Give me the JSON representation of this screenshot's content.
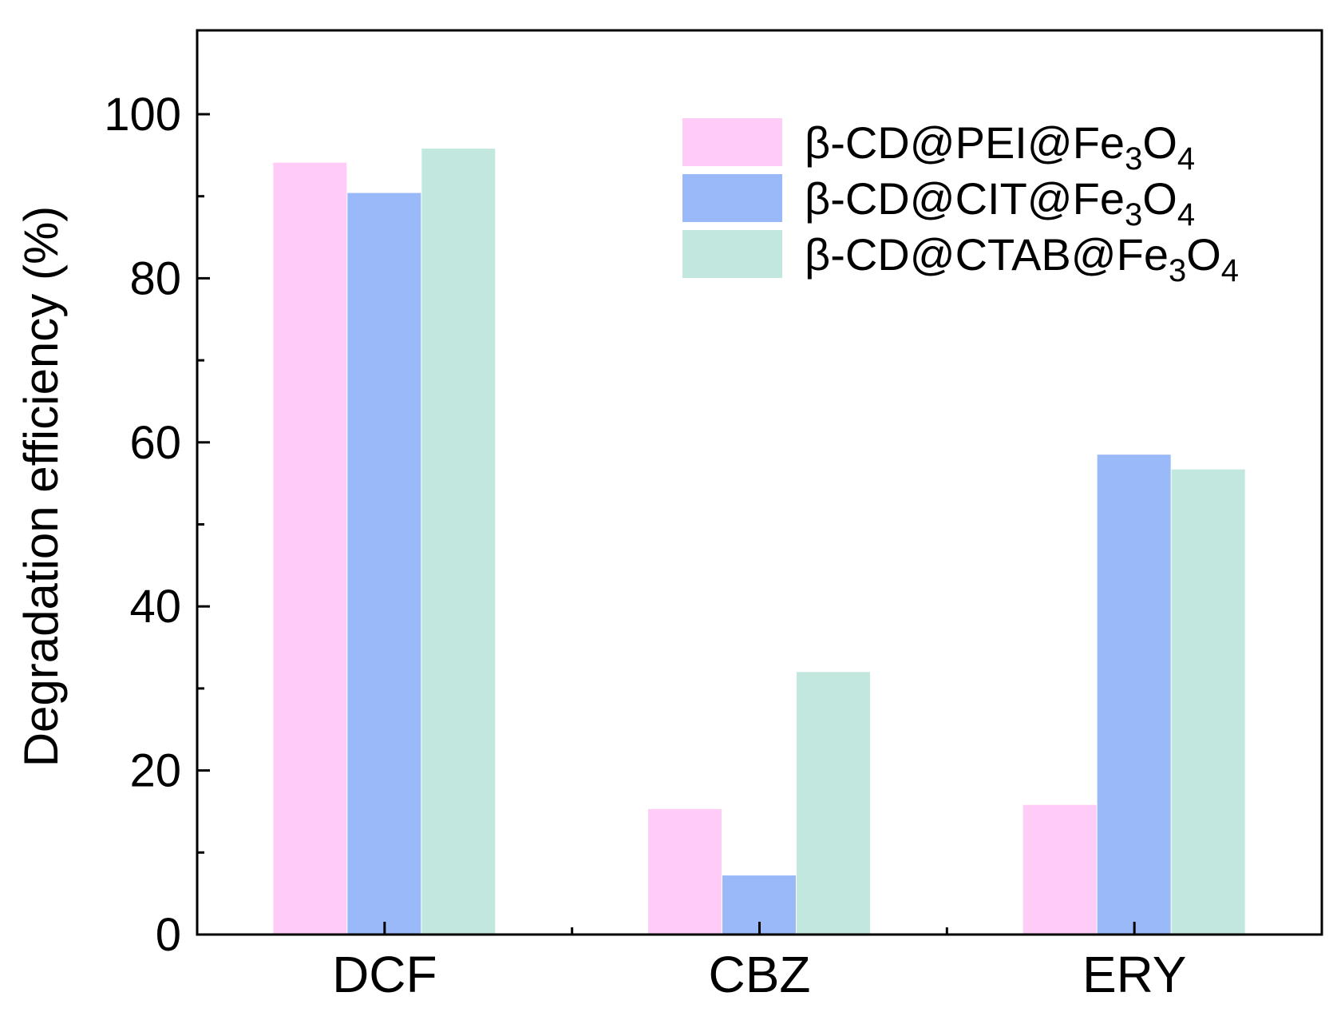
{
  "chart_data": {
    "type": "bar",
    "title": "",
    "xlabel": "",
    "ylabel": "Degradation efficiency (%)",
    "ylim": [
      0,
      100
    ],
    "yticks": [
      0,
      20,
      40,
      60,
      80,
      100
    ],
    "grid": false,
    "legend_position": "top-right",
    "categories": [
      "DCF",
      "CBZ",
      "ERY"
    ],
    "series": [
      {
        "name": "β-CD@PEI@Fe3O4",
        "label_parts": {
          "prefix": "β-CD@PEI@Fe",
          "sub1": "3",
          "mid": "O",
          "sub2": "4"
        },
        "color": "#ffccf7",
        "values": [
          94.1,
          15.3,
          15.8
        ]
      },
      {
        "name": "β-CD@CIT@Fe3O4",
        "label_parts": {
          "prefix": "β-CD@CIT@Fe",
          "sub1": "3",
          "mid": "O",
          "sub2": "4"
        },
        "color": "#99b9f9",
        "values": [
          90.4,
          7.2,
          58.5
        ]
      },
      {
        "name": "β-CD@CTAB@Fe3O4",
        "label_parts": {
          "prefix": "β-CD@CTAB@Fe",
          "sub1": "3",
          "mid": "O",
          "sub2": "4"
        },
        "color": "#c1e7df",
        "values": [
          95.8,
          32.0,
          56.7
        ]
      }
    ]
  }
}
